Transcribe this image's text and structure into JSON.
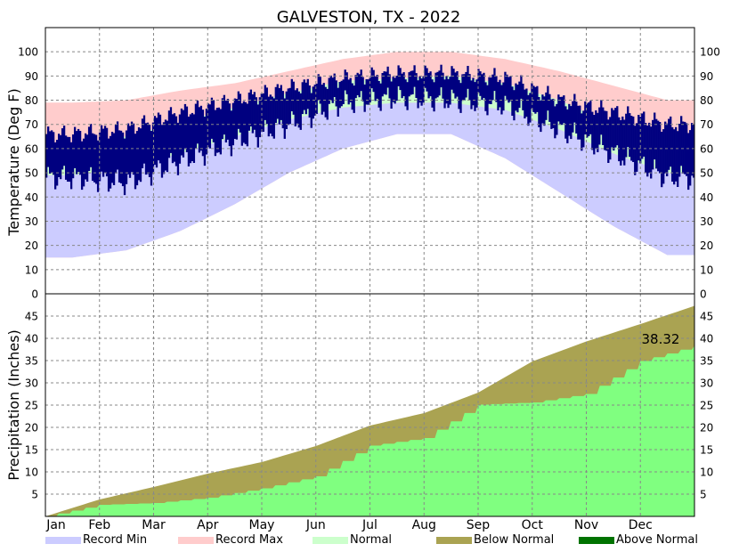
{
  "chart_data": [
    {
      "type": "area",
      "title": "GALVESTON, TX - 2022",
      "ylabel": "Temperature (Deg F)",
      "xlabel": "",
      "ylim": [
        0,
        110
      ],
      "yticks": [
        0,
        10,
        20,
        30,
        40,
        50,
        60,
        70,
        80,
        90,
        100
      ],
      "grid": true,
      "x_months": [
        "Jan",
        "Feb",
        "Mar",
        "Apr",
        "May",
        "Jun",
        "Jul",
        "Aug",
        "Sep",
        "Oct",
        "Nov",
        "Dec"
      ],
      "climatology_by_month": {
        "record_max": [
          79,
          80,
          84,
          87,
          92,
          97,
          100,
          100,
          97,
          92,
          86,
          80
        ],
        "normal_high": [
          62,
          65,
          71,
          77,
          83,
          88,
          89,
          90,
          87,
          80,
          70,
          63
        ],
        "normal_low": [
          49,
          52,
          58,
          65,
          72,
          77,
          79,
          79,
          76,
          68,
          58,
          50
        ],
        "record_min": [
          15,
          18,
          26,
          37,
          50,
          60,
          66,
          66,
          56,
          42,
          28,
          16
        ]
      },
      "observed_2022_by_month": {
        "high": [
          66,
          68,
          75,
          80,
          85,
          89,
          91,
          91,
          89,
          80,
          75,
          70
        ],
        "low": [
          48,
          46,
          55,
          63,
          70,
          79,
          81,
          80,
          78,
          68,
          58,
          48
        ]
      }
    },
    {
      "type": "area",
      "ylabel": "Precipitation (Inches)",
      "xlabel": "",
      "ylim": [
        0,
        50
      ],
      "yticks": [
        5,
        10,
        15,
        20,
        25,
        30,
        35,
        40,
        45
      ],
      "grid": true,
      "x_months": [
        "Jan",
        "Feb",
        "Mar",
        "Apr",
        "May",
        "Jun",
        "Jul",
        "Aug",
        "Sep",
        "Oct",
        "Nov",
        "Dec"
      ],
      "normal_cumulative_end_of_month": [
        3.8,
        6.6,
        9.6,
        12.2,
        15.8,
        20.4,
        23.2,
        27.8,
        34.8,
        39.3,
        43.2,
        47.3
      ],
      "observed_cumulative_end_of_month": [
        2.6,
        3.0,
        4.2,
        6.3,
        9.0,
        15.9,
        17.6,
        25.1,
        25.6,
        27.5,
        34.9,
        38.32
      ],
      "annotation": "38.32"
    }
  ],
  "legend": [
    {
      "label": "Record Min",
      "color": "#ccccff"
    },
    {
      "label": "Record Max",
      "color": "#ffcccc"
    },
    {
      "label": "Normal",
      "color": "#ccffcc"
    },
    {
      "label": "Below Normal",
      "color": "#aaa352"
    },
    {
      "label": "Above Normal",
      "color": "#007300"
    }
  ],
  "colors": {
    "record_min": "#ccccff",
    "record_max": "#ffcccc",
    "normal": "#ccffcc",
    "observed": "#000080",
    "below_normal": "#aaa352",
    "above_normal": "#007300",
    "observed_precip": "#80ff80"
  }
}
